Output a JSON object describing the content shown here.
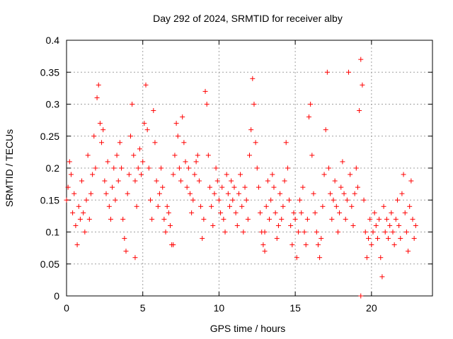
{
  "chart_data": {
    "type": "scatter",
    "title": "Day 292 of 2024, SRMTID for receiver alby",
    "xlabel": "GPS time / hours",
    "ylabel": "SRMTID / TECUs",
    "xlim": [
      0,
      24
    ],
    "ylim": [
      0,
      0.4
    ],
    "x_ticks": [
      0,
      5,
      10,
      15,
      20
    ],
    "x_tick_labels": [
      "0",
      "5",
      "10",
      "15",
      "20"
    ],
    "y_ticks": [
      0,
      0.05,
      0.1,
      0.15,
      0.2,
      0.25,
      0.3,
      0.35,
      0.4
    ],
    "y_tick_labels": [
      "0",
      "0.05",
      "0.1",
      "0.15",
      "0.2",
      "0.25",
      "0.3",
      "0.35",
      "0.4"
    ],
    "grid": true,
    "marker": "plus",
    "marker_color": "#ff0000",
    "series": [
      {
        "name": "SRMTID",
        "points": [
          [
            0.0,
            0.15
          ],
          [
            0.1,
            0.17
          ],
          [
            0.2,
            0.21
          ],
          [
            0.3,
            0.19
          ],
          [
            0.4,
            0.13
          ],
          [
            0.5,
            0.16
          ],
          [
            0.6,
            0.11
          ],
          [
            0.7,
            0.08
          ],
          [
            0.8,
            0.14
          ],
          [
            0.9,
            0.12
          ],
          [
            1.0,
            0.18
          ],
          [
            1.1,
            0.13
          ],
          [
            1.2,
            0.1
          ],
          [
            1.3,
            0.15
          ],
          [
            1.4,
            0.22
          ],
          [
            1.5,
            0.12
          ],
          [
            1.6,
            0.16
          ],
          [
            1.7,
            0.19
          ],
          [
            1.8,
            0.25
          ],
          [
            1.9,
            0.2
          ],
          [
            2.0,
            0.31
          ],
          [
            2.1,
            0.33
          ],
          [
            2.2,
            0.27
          ],
          [
            2.3,
            0.24
          ],
          [
            2.4,
            0.26
          ],
          [
            2.5,
            0.18
          ],
          [
            2.6,
            0.16
          ],
          [
            2.7,
            0.21
          ],
          [
            2.8,
            0.14
          ],
          [
            2.9,
            0.12
          ],
          [
            3.0,
            0.17
          ],
          [
            3.1,
            0.2
          ],
          [
            3.2,
            0.15
          ],
          [
            3.3,
            0.22
          ],
          [
            3.4,
            0.18
          ],
          [
            3.5,
            0.24
          ],
          [
            3.6,
            0.2
          ],
          [
            3.7,
            0.12
          ],
          [
            3.8,
            0.09
          ],
          [
            3.9,
            0.07
          ],
          [
            4.0,
            0.16
          ],
          [
            4.1,
            0.19
          ],
          [
            4.2,
            0.25
          ],
          [
            4.3,
            0.3
          ],
          [
            4.4,
            0.22
          ],
          [
            4.5,
            0.18
          ],
          [
            4.6,
            0.14
          ],
          [
            4.7,
            0.2
          ],
          [
            4.8,
            0.23
          ],
          [
            4.9,
            0.19
          ],
          [
            5.0,
            0.21
          ],
          [
            5.1,
            0.27
          ],
          [
            5.2,
            0.33
          ],
          [
            5.3,
            0.26
          ],
          [
            5.4,
            0.2
          ],
          [
            5.5,
            0.15
          ],
          [
            5.6,
            0.12
          ],
          [
            5.7,
            0.29
          ],
          [
            5.8,
            0.24
          ],
          [
            5.9,
            0.18
          ],
          [
            6.0,
            0.14
          ],
          [
            6.1,
            0.16
          ],
          [
            6.2,
            0.2
          ],
          [
            6.3,
            0.17
          ],
          [
            6.4,
            0.12
          ],
          [
            6.5,
            0.1
          ],
          [
            6.6,
            0.14
          ],
          [
            6.7,
            0.13
          ],
          [
            6.8,
            0.11
          ],
          [
            6.9,
            0.08
          ],
          [
            7.0,
            0.19
          ],
          [
            7.1,
            0.22
          ],
          [
            7.2,
            0.27
          ],
          [
            7.3,
            0.25
          ],
          [
            7.4,
            0.2
          ],
          [
            7.5,
            0.18
          ],
          [
            7.6,
            0.28
          ],
          [
            7.7,
            0.24
          ],
          [
            7.8,
            0.21
          ],
          [
            7.9,
            0.17
          ],
          [
            8.0,
            0.2
          ],
          [
            8.1,
            0.16
          ],
          [
            8.2,
            0.13
          ],
          [
            8.3,
            0.15
          ],
          [
            8.4,
            0.19
          ],
          [
            8.5,
            0.21
          ],
          [
            8.6,
            0.22
          ],
          [
            8.7,
            0.18
          ],
          [
            8.8,
            0.14
          ],
          [
            8.9,
            0.09
          ],
          [
            9.0,
            0.12
          ],
          [
            9.1,
            0.32
          ],
          [
            9.2,
            0.3
          ],
          [
            9.3,
            0.22
          ],
          [
            9.4,
            0.17
          ],
          [
            9.5,
            0.14
          ],
          [
            9.6,
            0.11
          ],
          [
            9.7,
            0.16
          ],
          [
            9.8,
            0.2
          ],
          [
            9.9,
            0.18
          ],
          [
            10.0,
            0.15
          ],
          [
            10.1,
            0.13
          ],
          [
            10.2,
            0.17
          ],
          [
            10.3,
            0.12
          ],
          [
            10.4,
            0.1
          ],
          [
            10.5,
            0.19
          ],
          [
            10.6,
            0.16
          ],
          [
            10.7,
            0.14
          ],
          [
            10.8,
            0.18
          ],
          [
            10.9,
            0.15
          ],
          [
            11.0,
            0.17
          ],
          [
            11.1,
            0.13
          ],
          [
            11.2,
            0.11
          ],
          [
            11.3,
            0.16
          ],
          [
            11.4,
            0.19
          ],
          [
            11.5,
            0.14
          ],
          [
            11.6,
            0.1
          ],
          [
            11.7,
            0.17
          ],
          [
            11.8,
            0.15
          ],
          [
            11.9,
            0.12
          ],
          [
            12.0,
            0.22
          ],
          [
            12.1,
            0.26
          ],
          [
            12.2,
            0.34
          ],
          [
            12.3,
            0.3
          ],
          [
            12.4,
            0.24
          ],
          [
            12.5,
            0.2
          ],
          [
            12.6,
            0.17
          ],
          [
            12.7,
            0.13
          ],
          [
            12.8,
            0.1
          ],
          [
            12.9,
            0.08
          ],
          [
            13.0,
            0.1
          ],
          [
            13.1,
            0.14
          ],
          [
            13.2,
            0.18
          ],
          [
            13.3,
            0.12
          ],
          [
            13.4,
            0.15
          ],
          [
            13.5,
            0.19
          ],
          [
            13.6,
            0.17
          ],
          [
            13.7,
            0.13
          ],
          [
            13.8,
            0.09
          ],
          [
            13.9,
            0.11
          ],
          [
            14.0,
            0.16
          ],
          [
            14.1,
            0.12
          ],
          [
            14.2,
            0.14
          ],
          [
            14.3,
            0.18
          ],
          [
            14.4,
            0.24
          ],
          [
            14.5,
            0.2
          ],
          [
            14.6,
            0.15
          ],
          [
            14.7,
            0.11
          ],
          [
            14.8,
            0.08
          ],
          [
            14.9,
            0.13
          ],
          [
            15.0,
            0.12
          ],
          [
            15.1,
            0.06
          ],
          [
            15.2,
            0.1
          ],
          [
            15.3,
            0.15
          ],
          [
            15.4,
            0.13
          ],
          [
            15.5,
            0.17
          ],
          [
            15.6,
            0.1
          ],
          [
            15.7,
            0.08
          ],
          [
            15.8,
            0.12
          ],
          [
            15.9,
            0.28
          ],
          [
            16.0,
            0.3
          ],
          [
            16.1,
            0.22
          ],
          [
            16.2,
            0.16
          ],
          [
            16.3,
            0.13
          ],
          [
            16.4,
            0.1
          ],
          [
            16.5,
            0.08
          ],
          [
            16.6,
            0.06
          ],
          [
            16.7,
            0.09
          ],
          [
            16.8,
            0.14
          ],
          [
            16.9,
            0.19
          ],
          [
            17.0,
            0.26
          ],
          [
            17.1,
            0.35
          ],
          [
            17.2,
            0.2
          ],
          [
            17.3,
            0.16
          ],
          [
            17.4,
            0.12
          ],
          [
            17.5,
            0.15
          ],
          [
            17.6,
            0.18
          ],
          [
            17.7,
            0.14
          ],
          [
            17.8,
            0.1
          ],
          [
            17.9,
            0.13
          ],
          [
            18.0,
            0.17
          ],
          [
            18.1,
            0.21
          ],
          [
            18.2,
            0.16
          ],
          [
            18.3,
            0.12
          ],
          [
            18.4,
            0.15
          ],
          [
            18.5,
            0.35
          ],
          [
            18.6,
            0.19
          ],
          [
            18.7,
            0.14
          ],
          [
            18.8,
            0.11
          ],
          [
            18.9,
            0.16
          ],
          [
            19.0,
            0.2
          ],
          [
            19.1,
            0.17
          ],
          [
            19.2,
            0.29
          ],
          [
            19.3,
            0.37
          ],
          [
            19.4,
            0.33
          ],
          [
            19.5,
            0.15
          ],
          [
            19.6,
            0.1
          ],
          [
            19.7,
            0.06
          ],
          [
            19.8,
            0.09
          ],
          [
            19.9,
            0.12
          ],
          [
            20.0,
            0.08
          ],
          [
            20.1,
            0.1
          ],
          [
            20.2,
            0.13
          ],
          [
            20.3,
            0.11
          ],
          [
            20.4,
            0.09
          ],
          [
            20.5,
            0.12
          ],
          [
            20.6,
            0.06
          ],
          [
            20.7,
            0.03
          ],
          [
            20.8,
            0.14
          ],
          [
            20.9,
            0.1
          ],
          [
            21.0,
            0.12
          ],
          [
            21.1,
            0.09
          ],
          [
            21.2,
            0.11
          ],
          [
            21.3,
            0.13
          ],
          [
            21.4,
            0.1
          ],
          [
            21.5,
            0.08
          ],
          [
            21.6,
            0.12
          ],
          [
            21.7,
            0.15
          ],
          [
            21.8,
            0.11
          ],
          [
            21.9,
            0.09
          ],
          [
            22.0,
            0.16
          ],
          [
            22.1,
            0.19
          ],
          [
            22.2,
            0.13
          ],
          [
            22.3,
            0.1
          ],
          [
            22.4,
            0.07
          ],
          [
            22.5,
            0.14
          ],
          [
            22.6,
            0.18
          ],
          [
            22.7,
            0.12
          ],
          [
            22.8,
            0.09
          ],
          [
            22.9,
            0.11
          ],
          [
            19.3,
            0.0
          ],
          [
            4.5,
            0.06
          ],
          [
            13.0,
            0.07
          ],
          [
            7.0,
            0.08
          ]
        ]
      }
    ]
  }
}
